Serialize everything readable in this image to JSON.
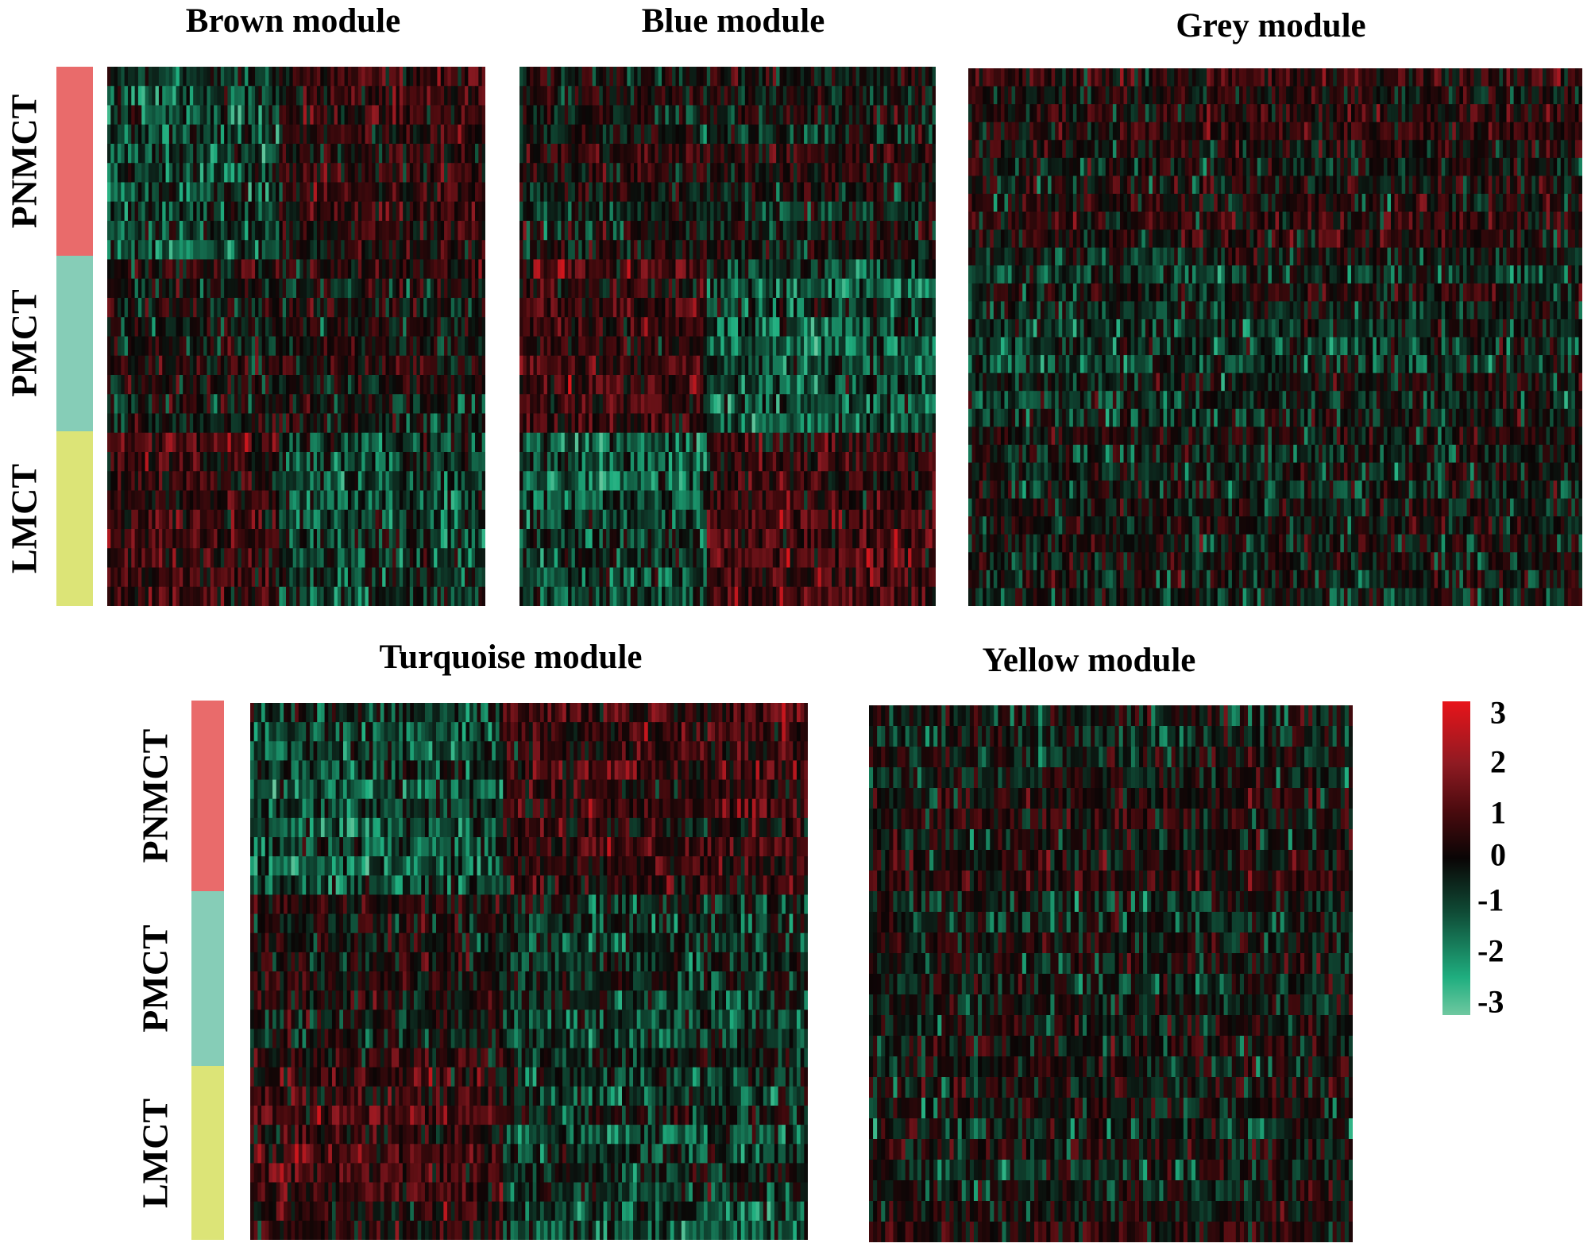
{
  "chart_data": {
    "type": "heatmap",
    "row_groups": [
      {
        "name": "PNMCT",
        "color": "#e96b6b"
      },
      {
        "name": "PMCT",
        "color": "#86cdb7"
      },
      {
        "name": "LMCT",
        "color": "#dce477"
      }
    ],
    "panels": [
      {
        "title": "Brown module",
        "show_groups": true
      },
      {
        "title": "Blue module",
        "show_groups": false
      },
      {
        "title": "Grey module",
        "show_groups": false
      },
      {
        "title": "Turquoise module",
        "show_groups": true
      },
      {
        "title": "Yellow module",
        "show_groups": false
      }
    ],
    "colorbar": {
      "range": [
        -3,
        3
      ],
      "ticks": [
        "3",
        "2",
        "1",
        "0",
        "-1",
        "-2",
        "-3"
      ],
      "colors": {
        "high": "#e8141a",
        "mid": "#0a0505",
        "low": "#6fc8a0"
      }
    }
  }
}
